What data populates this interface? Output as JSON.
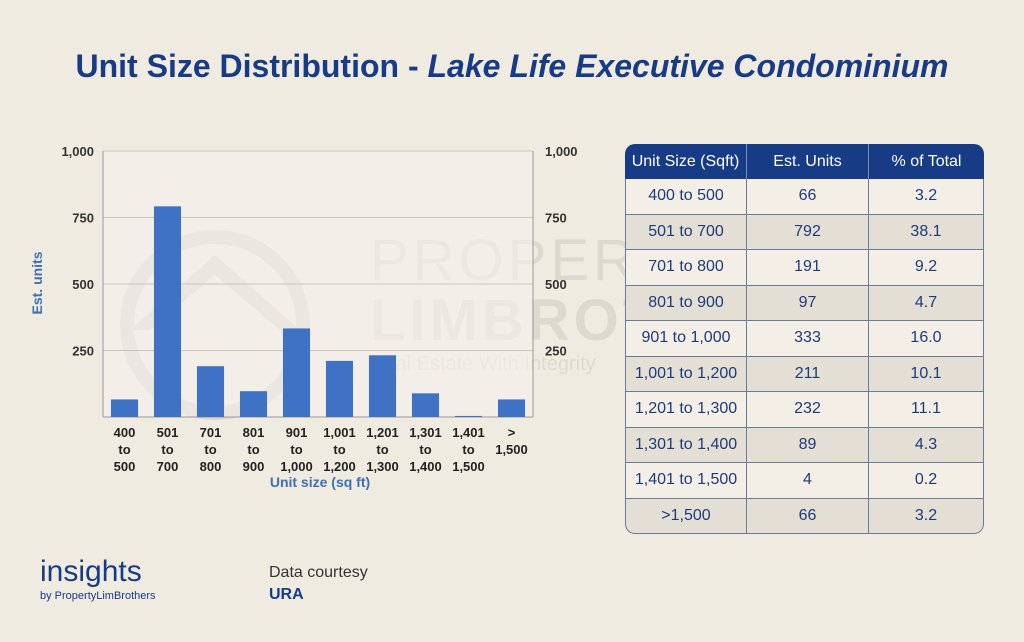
{
  "title": {
    "main": "Unit Size Distribution - ",
    "italic": "Lake Life Executive Condominium"
  },
  "watermark": {
    "line1": "PROPERTY",
    "line2": "LIMBROTHERS",
    "line3": "Real Estate With Integrity"
  },
  "chart_data": {
    "type": "bar",
    "categories": [
      [
        "400",
        "to",
        "500"
      ],
      [
        "501",
        "to",
        "700"
      ],
      [
        "701",
        "to",
        "800"
      ],
      [
        "801",
        "to",
        "900"
      ],
      [
        "901",
        "to",
        "1,000"
      ],
      [
        "1,001",
        "to",
        "1,200"
      ],
      [
        "1,201",
        "to",
        "1,300"
      ],
      [
        "1,301",
        "to",
        "1,400"
      ],
      [
        "1,401",
        "to",
        "1,500"
      ],
      [
        ">",
        "1,500"
      ]
    ],
    "values": [
      66,
      792,
      191,
      97,
      333,
      211,
      232,
      89,
      4,
      66
    ],
    "xlabel": "Unit size (sq ft)",
    "ylabel": "Est. units",
    "ylim": [
      0,
      1000
    ],
    "yticks": [
      "1,000",
      "750",
      "500",
      "250"
    ],
    "ytick_values": [
      1000,
      750,
      500,
      250
    ],
    "bar_color": "#3f72c4",
    "grid": true
  },
  "table": {
    "headers": [
      "Unit Size (Sqft)",
      "Est. Units",
      "% of Total"
    ],
    "rows": [
      [
        "400 to 500",
        "66",
        "3.2"
      ],
      [
        "501 to 700",
        "792",
        "38.1"
      ],
      [
        "701 to 800",
        "191",
        "9.2"
      ],
      [
        "801 to 900",
        "97",
        "4.7"
      ],
      [
        "901 to 1,000",
        "333",
        "16.0"
      ],
      [
        "1,001 to 1,200",
        "211",
        "10.1"
      ],
      [
        "1,201 to 1,300",
        "232",
        "11.1"
      ],
      [
        "1,301 to 1,400",
        "89",
        "4.3"
      ],
      [
        "1,401 to 1,500",
        "4",
        "0.2"
      ],
      [
        ">1,500",
        "66",
        "3.2"
      ]
    ]
  },
  "brand": {
    "name": "insights",
    "by": "by PropertyLimBrothers"
  },
  "credit": {
    "label": "Data courtesy",
    "source": "URA"
  }
}
